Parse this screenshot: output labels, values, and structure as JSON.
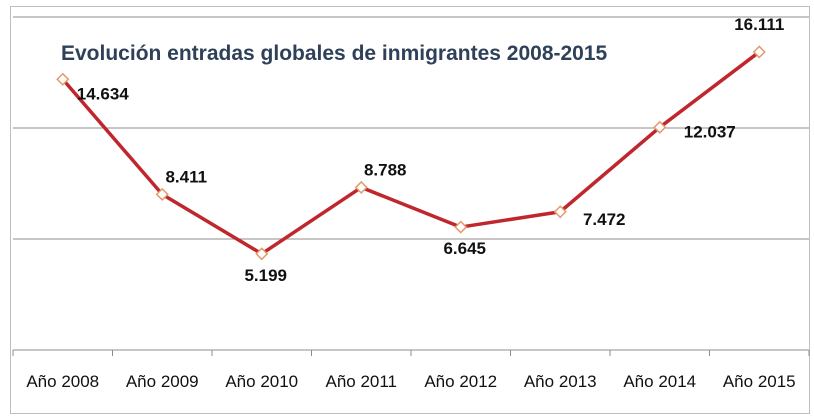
{
  "chart_data": {
    "type": "line",
    "title": "Evolución entradas globales de inmigrantes 2008-2015",
    "categories": [
      "Año 2008",
      "Año 2009",
      "Año 2010",
      "Año 2011",
      "Año 2012",
      "Año 2013",
      "Año 2014",
      "Año 2015"
    ],
    "series": [
      {
        "values": [
          14634,
          8411,
          5199,
          8788,
          6645,
          7472,
          12037,
          16111
        ],
        "labels": [
          "14.634",
          "8.411",
          "5.199",
          "8.788",
          "6.645",
          "7.472",
          "12.037",
          "16.111"
        ]
      }
    ],
    "ylim": [
      0,
      18000
    ],
    "gridlines": true,
    "legend": "none",
    "line_color": "#c0272d",
    "marker_fill": "#ffffff",
    "marker_stroke": "#e59a6b"
  }
}
